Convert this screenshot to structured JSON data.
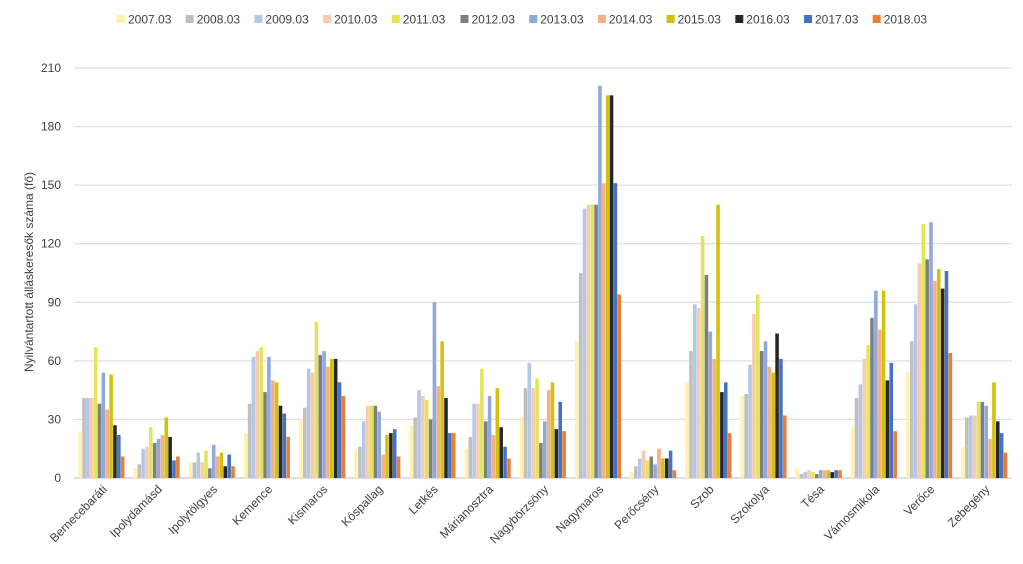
{
  "chart_data": {
    "type": "bar",
    "title": "",
    "xlabel": "",
    "ylabel": "Nyilvántartott álláskeresők száma (fő)",
    "ylim": [
      0,
      210
    ],
    "yticks": [
      0,
      30,
      60,
      90,
      120,
      150,
      180,
      210
    ],
    "grid": true,
    "legend_position": "top",
    "categories": [
      "Bernecebaráti",
      "Ipolydamásd",
      "Ipolytölgyes",
      "Kemence",
      "Kismaros",
      "Kóspallag",
      "Letkés",
      "Márianosztra",
      "Nagybörzsöny",
      "Nagymaros",
      "Perőcsény",
      "Szob",
      "Szokolya",
      "Tésa",
      "Vámosmikola",
      "Verőce",
      "Zebegény"
    ],
    "series": [
      {
        "name": "2007.03",
        "color": "#FFF2AE",
        "values": [
          24,
          5,
          8,
          23,
          30,
          14,
          27,
          15,
          31,
          70,
          3,
          49,
          42,
          5,
          26,
          54,
          16
        ]
      },
      {
        "name": "2008.03",
        "color": "#BFBFBF",
        "values": [
          41,
          7,
          8,
          38,
          36,
          16,
          31,
          21,
          46,
          105,
          6,
          65,
          43,
          2,
          41,
          70,
          31
        ]
      },
      {
        "name": "2009.03",
        "color": "#B4C7E7",
        "values": [
          41,
          15,
          13,
          62,
          56,
          29,
          45,
          38,
          59,
          138,
          10,
          89,
          58,
          3,
          48,
          89,
          32
        ]
      },
      {
        "name": "2010.03",
        "color": "#F8CBAD",
        "values": [
          41,
          16,
          8,
          65,
          54,
          37,
          42,
          38,
          46,
          140,
          14,
          87,
          84,
          4,
          61,
          110,
          32
        ]
      },
      {
        "name": "2011.03",
        "color": "#E2E55A",
        "values": [
          67,
          26,
          14,
          67,
          80,
          37,
          40,
          56,
          51,
          140,
          9,
          124,
          94,
          3,
          68,
          130,
          39
        ]
      },
      {
        "name": "2012.03",
        "color": "#7F7F7F",
        "values": [
          38,
          18,
          5,
          44,
          63,
          37,
          30,
          29,
          18,
          140,
          11,
          104,
          65,
          2,
          82,
          112,
          39
        ]
      },
      {
        "name": "2013.03",
        "color": "#8EA9DB",
        "values": [
          54,
          20,
          17,
          62,
          65,
          34,
          90,
          42,
          29,
          201,
          7,
          75,
          70,
          4,
          96,
          131,
          37
        ]
      },
      {
        "name": "2014.03",
        "color": "#F4B183",
        "values": [
          35,
          22,
          11,
          50,
          57,
          12,
          47,
          22,
          45,
          151,
          15,
          61,
          57,
          4,
          76,
          101,
          20
        ]
      },
      {
        "name": "2015.03",
        "color": "#D4C20A",
        "values": [
          53,
          31,
          13,
          49,
          61,
          22,
          70,
          46,
          49,
          196,
          10,
          140,
          54,
          4,
          96,
          107,
          49
        ]
      },
      {
        "name": "2016.03",
        "color": "#262626",
        "values": [
          27,
          21,
          6,
          37,
          61,
          23,
          41,
          26,
          25,
          196,
          10,
          44,
          74,
          3,
          50,
          97,
          29
        ]
      },
      {
        "name": "2017.03",
        "color": "#4472C4",
        "values": [
          22,
          9,
          12,
          33,
          49,
          25,
          23,
          16,
          39,
          151,
          14,
          49,
          61,
          4,
          59,
          106,
          23
        ]
      },
      {
        "name": "2018.03",
        "color": "#ED7D31",
        "values": [
          11,
          11,
          6,
          21,
          42,
          11,
          23,
          10,
          24,
          94,
          4,
          23,
          32,
          4,
          24,
          64,
          13
        ]
      }
    ]
  }
}
